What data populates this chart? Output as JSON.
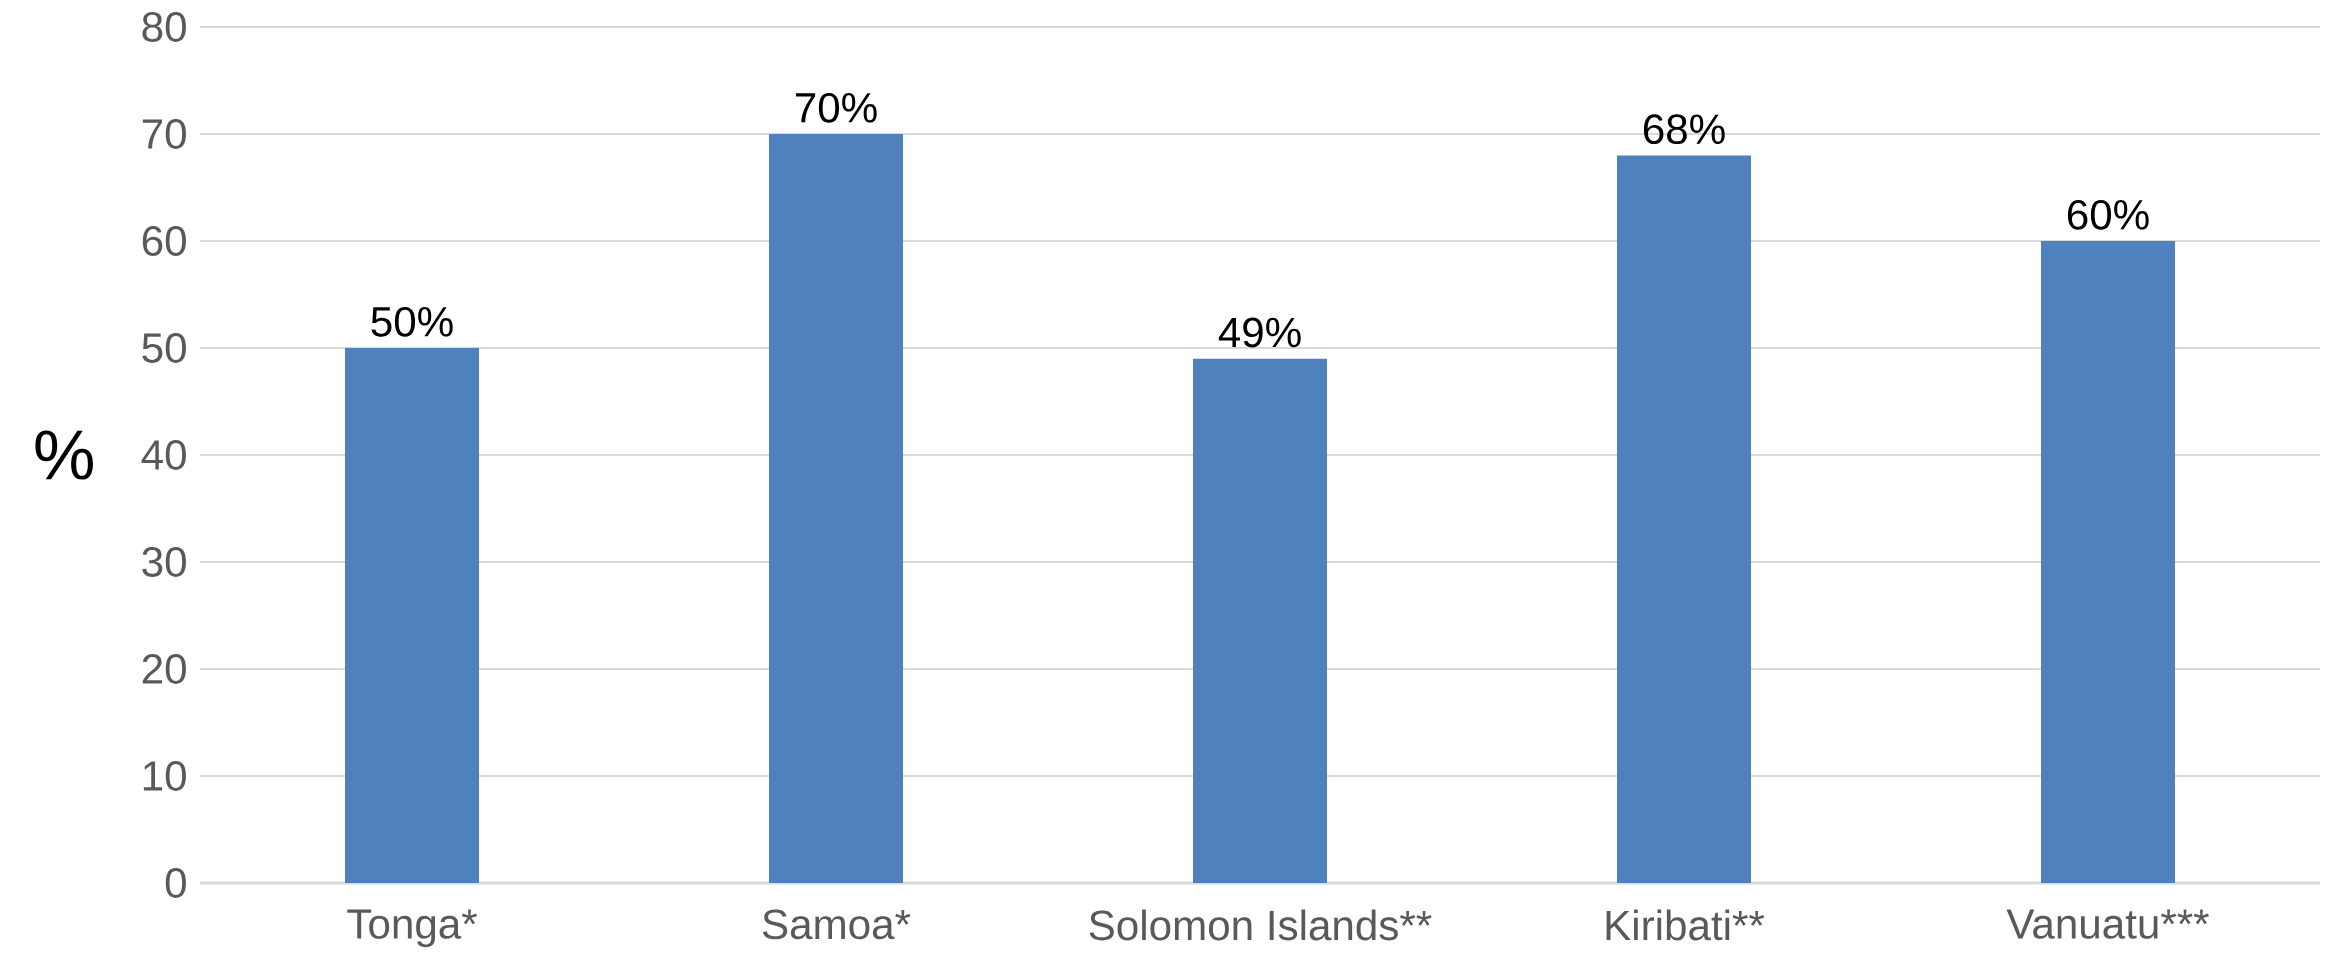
{
  "chart_data": {
    "type": "bar",
    "ylabel": "%",
    "categories": [
      "Tonga*",
      "Samoa*",
      "Solomon Islands**",
      "Kiribati**",
      "Vanuatu***"
    ],
    "values": [
      50,
      70,
      49,
      68,
      60
    ],
    "value_labels": [
      "50%",
      "70%",
      "49%",
      "68%",
      "60%"
    ],
    "color": "#4f81bd",
    "ylim": [
      0,
      80
    ],
    "yticks": [
      0,
      10,
      20,
      30,
      40,
      50,
      60,
      70,
      80
    ],
    "grid": "y"
  }
}
